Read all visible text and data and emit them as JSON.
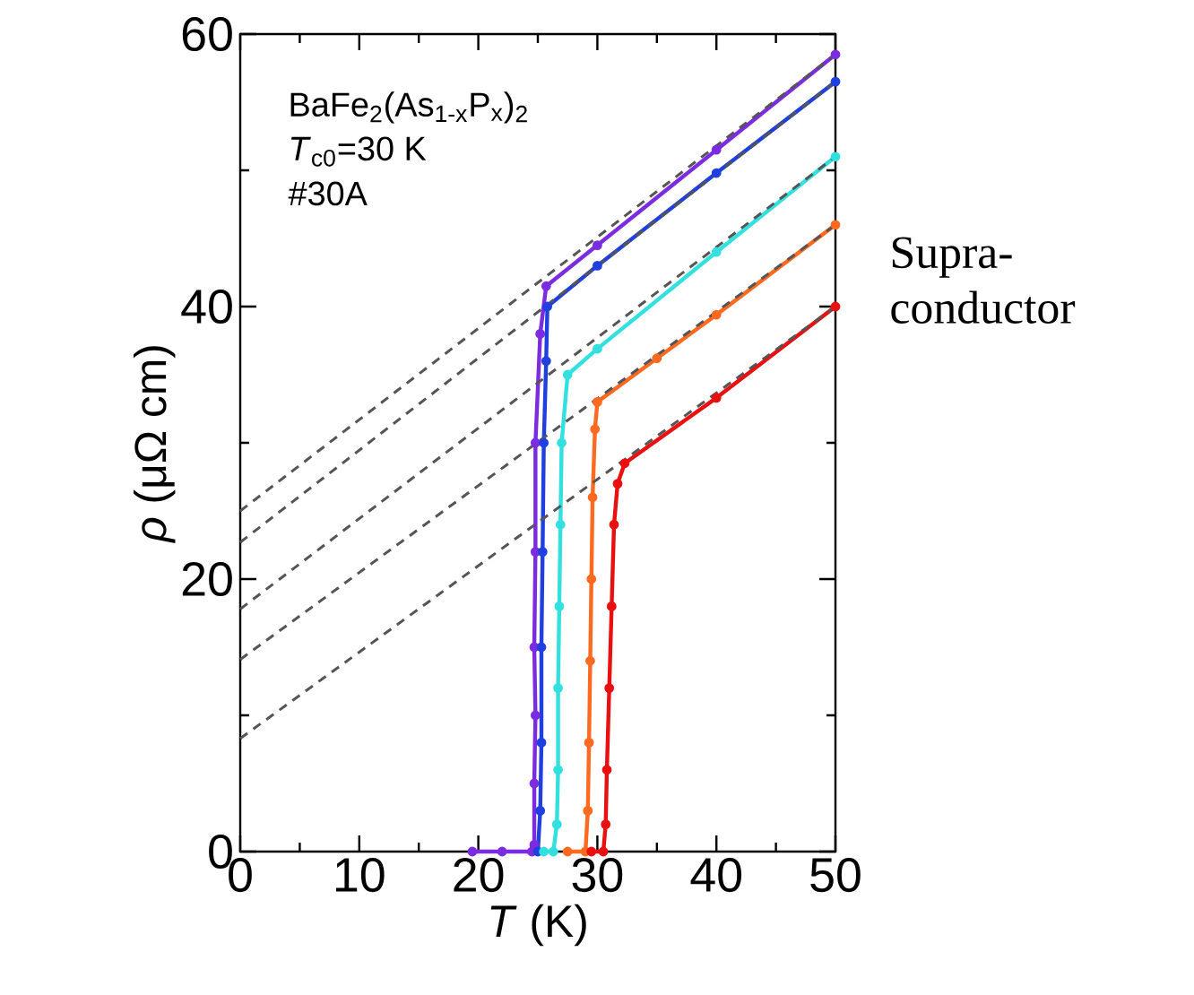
{
  "chart_data": {
    "type": "line",
    "xlabel": "*T* (K)",
    "ylabel": "*ρ* (μΩ cm)",
    "annotations": [
      "BaFe$_{2}$(As$_{1-x}$P$_{x}$)$_{2}$",
      "*T*$_{c0}$=30 K",
      "#30A",
      "Supra-conductor"
    ],
    "xlim": [
      0,
      50
    ],
    "ylim": [
      0,
      60
    ],
    "xticks": [
      0,
      {
        "value": 5,
        "label": null
      },
      10,
      {
        "value": 15,
        "label": null
      },
      20,
      {
        "value": 25,
        "label": null
      },
      30,
      {
        "value": 35,
        "label": null
      },
      40,
      {
        "value": 45,
        "label": null
      },
      50
    ],
    "yticks": [
      0,
      {
        "value": 10,
        "label": null
      },
      20,
      {
        "value": 30,
        "label": null
      },
      40,
      {
        "value": 50,
        "label": null
      },
      60
    ],
    "grid": false,
    "series": [
      {
        "color": "#7b2be0",
        "marker": "circle",
        "line_style": "solid",
        "x": [
          19.5,
          22,
          24.5,
          24.7,
          24.7,
          24.8,
          24.7,
          24.8,
          24.8,
          25.2,
          25.7,
          30,
          40,
          50
        ],
        "values": [
          0,
          0,
          0,
          0.5,
          5,
          10,
          15,
          22,
          30,
          38,
          41.5,
          44.5,
          51.5,
          58.5
        ]
      },
      {
        "color": "#1f3fe0",
        "marker": "circle",
        "line_style": "solid",
        "x": [
          25,
          25.2,
          25.3,
          25.3,
          25.4,
          25.5,
          25.7,
          25.8,
          30,
          40,
          50
        ],
        "values": [
          0,
          3,
          8,
          15,
          22,
          30,
          36,
          40,
          43,
          49.8,
          56.5
        ]
      },
      {
        "color": "#33e0e0",
        "marker": "circle",
        "line_style": "solid",
        "x": [
          25.5,
          26.3,
          26.6,
          26.7,
          26.7,
          26.8,
          26.9,
          27,
          27.5,
          30,
          40,
          50
        ],
        "values": [
          0,
          0,
          2,
          6,
          12,
          18,
          24,
          30,
          35,
          36.9,
          44,
          51
        ]
      },
      {
        "color": "#ff6a20",
        "marker": "circle",
        "line_style": "solid",
        "x": [
          27.5,
          29,
          29.2,
          29.3,
          29.4,
          29.5,
          29.6,
          29.8,
          30,
          35,
          40,
          50
        ],
        "values": [
          0,
          0,
          3,
          8,
          14,
          20,
          26,
          31,
          33,
          36.2,
          39.4,
          46
        ]
      },
      {
        "color": "#e81010",
        "marker": "circle",
        "line_style": "solid",
        "x": [
          29.5,
          30.5,
          30.7,
          30.8,
          31,
          31.2,
          31.4,
          31.7,
          32.3,
          40,
          50
        ],
        "values": [
          0,
          0,
          2,
          6,
          12,
          18,
          24,
          27,
          28.5,
          33.3,
          40
        ]
      },
      {
        "color": "#555555",
        "marker": "none",
        "line_style": "dashed",
        "x": [
          0,
          50
        ],
        "values": [
          25,
          58.5
        ]
      },
      {
        "color": "#555555",
        "marker": "none",
        "line_style": "dashed",
        "x": [
          0,
          50
        ],
        "values": [
          22.7,
          56.5
        ]
      },
      {
        "color": "#555555",
        "marker": "none",
        "line_style": "dashed",
        "x": [
          0,
          50
        ],
        "values": [
          17.8,
          51
        ]
      },
      {
        "color": "#555555",
        "marker": "none",
        "line_style": "dashed",
        "x": [
          0,
          50
        ],
        "values": [
          14.1,
          46
        ]
      },
      {
        "color": "#555555",
        "marker": "none",
        "line_style": "dashed",
        "x": [
          0,
          50
        ],
        "values": [
          8.3,
          40
        ]
      }
    ]
  }
}
